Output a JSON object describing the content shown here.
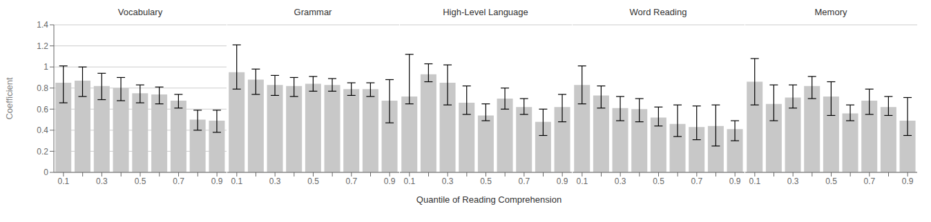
{
  "chart_data": [
    {
      "type": "bar",
      "title": "Vocabulary",
      "ylabel": "Coefficient",
      "categories": [
        "0.1",
        null,
        "0.3",
        null,
        "0.5",
        null,
        "0.7",
        null,
        "0.9"
      ],
      "values": [
        0.85,
        0.87,
        0.82,
        0.8,
        0.75,
        0.74,
        0.68,
        0.5,
        0.49
      ],
      "error_lower": [
        0.19,
        0.15,
        0.13,
        0.12,
        0.09,
        0.09,
        0.07,
        0.1,
        0.11
      ],
      "error_upper": [
        0.16,
        0.13,
        0.12,
        0.1,
        0.08,
        0.07,
        0.06,
        0.09,
        0.1
      ],
      "color": "#c8c8c8",
      "ylim": [
        0,
        1.4
      ],
      "yticks": [
        0,
        0.2,
        0.4,
        0.6,
        0.8,
        1,
        1.2,
        1.4
      ],
      "grid": true
    },
    {
      "type": "bar",
      "title": "Grammar",
      "categories": [
        "0.1",
        null,
        "0.3",
        null,
        "0.5",
        null,
        "0.7",
        null,
        "0.9"
      ],
      "values": [
        0.95,
        0.88,
        0.83,
        0.82,
        0.84,
        0.83,
        0.79,
        0.79,
        0.68
      ],
      "error_lower": [
        0.16,
        0.14,
        0.1,
        0.1,
        0.07,
        0.06,
        0.06,
        0.07,
        0.21
      ],
      "error_upper": [
        0.26,
        0.1,
        0.09,
        0.08,
        0.07,
        0.06,
        0.06,
        0.06,
        0.2
      ],
      "color": "#c8c8c8",
      "ylim": [
        0,
        1.4
      ],
      "yticks": [
        0,
        0.2,
        0.4,
        0.6,
        0.8,
        1,
        1.2,
        1.4
      ],
      "grid": true,
      "tick_labels": "x"
    },
    {
      "type": "bar",
      "title": "High-Level Language",
      "xlabel": "Quantile of Reading Comprehension",
      "categories": [
        "0.1",
        null,
        "0.3",
        null,
        "0.5",
        null,
        "0.7",
        null,
        "0.9"
      ],
      "values": [
        0.72,
        0.93,
        0.85,
        0.66,
        0.54,
        0.7,
        0.62,
        0.48,
        0.62
      ],
      "error_lower": [
        0.07,
        0.07,
        0.21,
        0.11,
        0.05,
        0.1,
        0.07,
        0.13,
        0.14
      ],
      "error_upper": [
        0.4,
        0.1,
        0.17,
        0.16,
        0.11,
        0.1,
        0.08,
        0.12,
        0.12
      ],
      "color": "#c8c8c8",
      "ylim": [
        0,
        1.4
      ],
      "yticks": [
        0,
        0.2,
        0.4,
        0.6,
        0.8,
        1,
        1.2,
        1.4
      ],
      "grid": true,
      "tick_labels": "x"
    },
    {
      "type": "bar",
      "title": "Word Reading",
      "categories": [
        "0.1",
        null,
        "0.3",
        null,
        "0.5",
        null,
        "0.7",
        null,
        "0.9"
      ],
      "values": [
        0.83,
        0.73,
        0.61,
        0.6,
        0.52,
        0.46,
        0.43,
        0.44,
        0.41
      ],
      "error_lower": [
        0.18,
        0.12,
        0.12,
        0.12,
        0.08,
        0.12,
        0.12,
        0.19,
        0.11
      ],
      "error_upper": [
        0.18,
        0.09,
        0.11,
        0.1,
        0.1,
        0.18,
        0.2,
        0.2,
        0.08
      ],
      "color": "#c8c8c8",
      "ylim": [
        0,
        1.4
      ],
      "yticks": [
        0,
        0.2,
        0.4,
        0.6,
        0.8,
        1,
        1.2,
        1.4
      ],
      "grid": true,
      "tick_labels": "x"
    },
    {
      "type": "bar",
      "title": "Memory",
      "categories": [
        "0.1",
        null,
        "0.3",
        null,
        "0.5",
        null,
        "0.7",
        null,
        "0.9"
      ],
      "values": [
        0.86,
        0.65,
        0.71,
        0.82,
        0.72,
        0.56,
        0.68,
        0.62,
        0.49
      ],
      "error_lower": [
        0.22,
        0.16,
        0.1,
        0.12,
        0.18,
        0.07,
        0.13,
        0.08,
        0.14
      ],
      "error_upper": [
        0.22,
        0.18,
        0.12,
        0.09,
        0.14,
        0.08,
        0.11,
        0.1,
        0.22
      ],
      "color": "#c8c8c8",
      "ylim": [
        0,
        1.4
      ],
      "yticks": [
        0,
        0.2,
        0.4,
        0.6,
        0.8,
        1,
        1.2,
        1.4
      ],
      "grid": true,
      "tick_labels": "x"
    }
  ]
}
